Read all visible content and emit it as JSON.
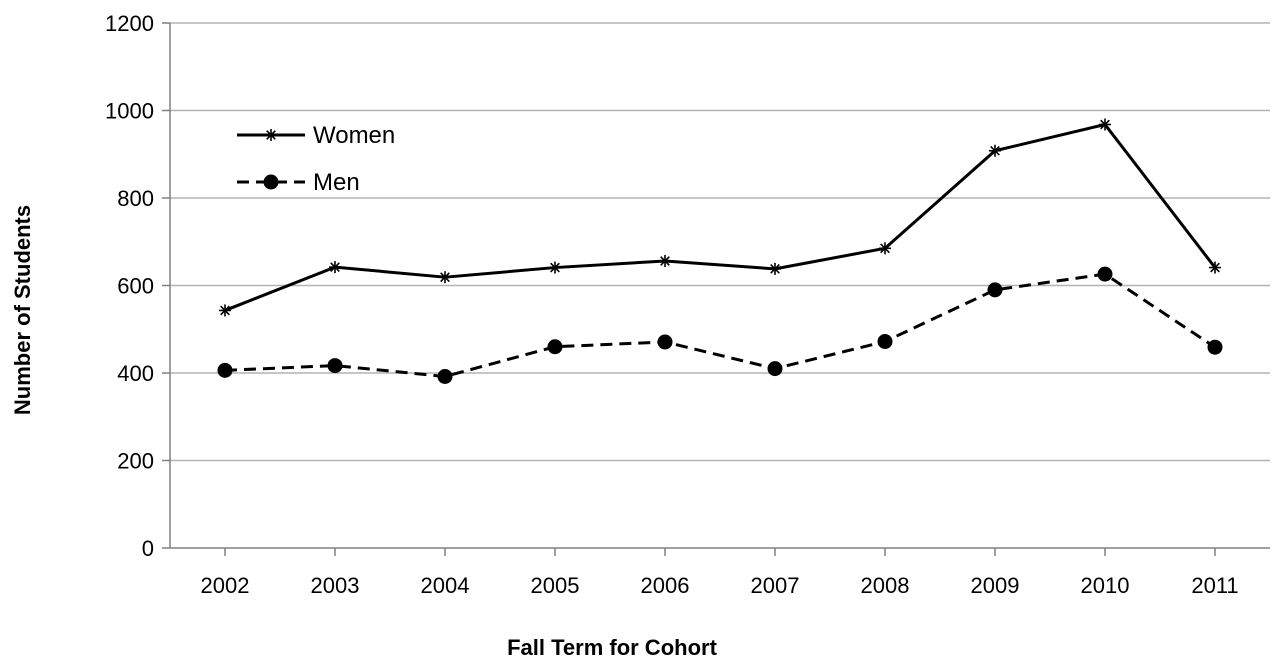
{
  "chart_data": {
    "type": "line",
    "title": "",
    "xlabel": "Fall Term for Cohort",
    "ylabel": "Number of Students",
    "categories": [
      "2002",
      "2003",
      "2004",
      "2005",
      "2006",
      "2007",
      "2008",
      "2009",
      "2010",
      "2011"
    ],
    "ylim": [
      0,
      1200
    ],
    "yticks": [
      0,
      200,
      400,
      600,
      800,
      1000,
      1200
    ],
    "grid": "horizontal",
    "legend_position": "top-left",
    "series": [
      {
        "name": "Women",
        "values": [
          543,
          642,
          619,
          641,
          656,
          638,
          685,
          908,
          968,
          641
        ],
        "line_style": "solid",
        "marker": "asterisk",
        "color": "#000000"
      },
      {
        "name": "Men",
        "values": [
          406,
          417,
          392,
          460,
          471,
          410,
          472,
          590,
          626,
          459
        ],
        "line_style": "dashed",
        "marker": "circle",
        "color": "#000000"
      }
    ]
  }
}
